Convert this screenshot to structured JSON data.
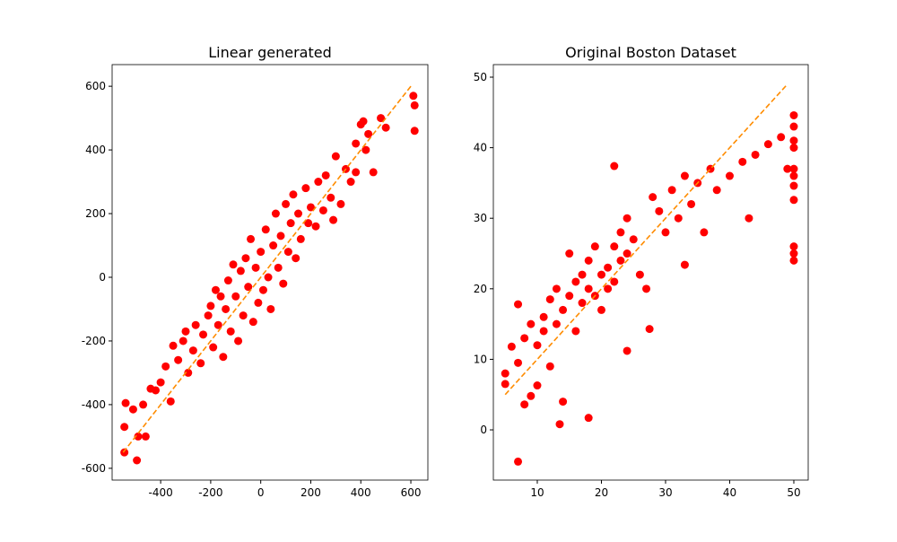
{
  "chart_data": [
    {
      "type": "scatter",
      "title": "Linear generated",
      "color": "#ff0000",
      "xlim": [
        -594,
        668
      ],
      "ylim": [
        -637,
        668
      ],
      "xticks": [
        -400,
        -200,
        0,
        200,
        400,
        600
      ],
      "yticks": [
        -600,
        -400,
        -200,
        0,
        200,
        400,
        600
      ],
      "x": [
        -545,
        -545,
        -540,
        -510,
        -495,
        -490,
        -470,
        -460,
        -440,
        -420,
        -400,
        -380,
        -360,
        -350,
        -330,
        -310,
        -300,
        -290,
        -270,
        -260,
        -240,
        -230,
        -210,
        -200,
        -190,
        -180,
        -170,
        -160,
        -150,
        -140,
        -130,
        -120,
        -110,
        -100,
        -90,
        -80,
        -70,
        -60,
        -50,
        -40,
        -30,
        -20,
        -10,
        0,
        10,
        20,
        30,
        40,
        50,
        60,
        70,
        80,
        90,
        100,
        110,
        120,
        130,
        140,
        150,
        160,
        180,
        190,
        200,
        220,
        230,
        250,
        260,
        280,
        290,
        300,
        320,
        340,
        360,
        380,
        380,
        400,
        410,
        420,
        430,
        450,
        480,
        500,
        610,
        615,
        615
      ],
      "values": [
        -550,
        -470,
        -395,
        -415,
        -575,
        -500,
        -400,
        -500,
        -350,
        -355,
        -330,
        -280,
        -390,
        -215,
        -260,
        -200,
        -170,
        -300,
        -230,
        -150,
        -270,
        -180,
        -120,
        -90,
        -220,
        -40,
        -150,
        -60,
        -250,
        -100,
        -10,
        -170,
        40,
        -60,
        -200,
        20,
        -120,
        60,
        -30,
        120,
        -140,
        30,
        -80,
        80,
        -40,
        150,
        0,
        -100,
        100,
        200,
        30,
        130,
        -20,
        230,
        80,
        170,
        260,
        60,
        200,
        120,
        280,
        170,
        220,
        160,
        300,
        210,
        320,
        250,
        180,
        380,
        230,
        340,
        300,
        330,
        420,
        480,
        490,
        400,
        450,
        330,
        500,
        470,
        570,
        540,
        460
      ],
      "fit": {
        "x": [
          -550,
          605
        ],
        "values": [
          -550,
          605
        ],
        "color": "#ff8c00"
      }
    },
    {
      "type": "scatter",
      "title": "Original Boston Dataset",
      "color": "#ff0000",
      "xlim": [
        3.15,
        52.24
      ],
      "ylim": [
        -7.12,
        51.78
      ],
      "xticks": [
        10,
        20,
        30,
        40,
        50
      ],
      "yticks": [
        0,
        10,
        20,
        30,
        40,
        50
      ],
      "x": [
        5,
        5,
        6,
        7,
        7,
        7,
        8,
        8,
        9,
        9,
        10,
        10,
        11,
        11,
        12,
        12,
        13,
        13,
        13.5,
        14,
        14,
        15,
        15,
        16,
        16,
        17,
        17,
        18,
        18,
        18,
        19,
        19,
        20,
        20,
        21,
        21,
        22,
        22,
        22,
        23,
        23,
        24,
        24,
        24,
        25,
        26,
        27,
        27.5,
        28,
        29,
        30,
        31,
        32,
        33,
        33,
        34,
        35,
        36,
        37,
        38,
        40,
        42,
        43,
        44,
        46,
        48,
        49,
        50,
        50,
        50,
        50,
        50,
        50,
        50,
        50,
        50,
        50,
        50
      ],
      "values": [
        8,
        6.5,
        11.8,
        17.8,
        -4.5,
        9.5,
        3.6,
        13,
        4.8,
        15,
        6.3,
        12,
        16,
        14,
        18.5,
        9,
        20,
        15,
        0.8,
        4,
        17,
        25,
        19,
        21,
        14,
        22,
        18,
        1.7,
        24,
        20,
        19,
        26,
        22,
        17,
        23,
        20,
        37.4,
        26,
        21,
        24,
        28,
        11.2,
        25,
        30,
        27,
        22,
        20,
        14.3,
        33,
        31,
        28,
        34,
        30,
        23.4,
        36,
        32,
        35,
        28,
        37,
        34,
        36,
        38,
        30,
        39,
        40.5,
        41.5,
        37,
        44.6,
        43,
        41,
        40,
        37,
        36,
        34.6,
        32.6,
        26,
        25,
        24
      ],
      "fit": {
        "x": [
          5,
          49
        ],
        "values": [
          5,
          49
        ],
        "color": "#ff8c00"
      }
    }
  ]
}
